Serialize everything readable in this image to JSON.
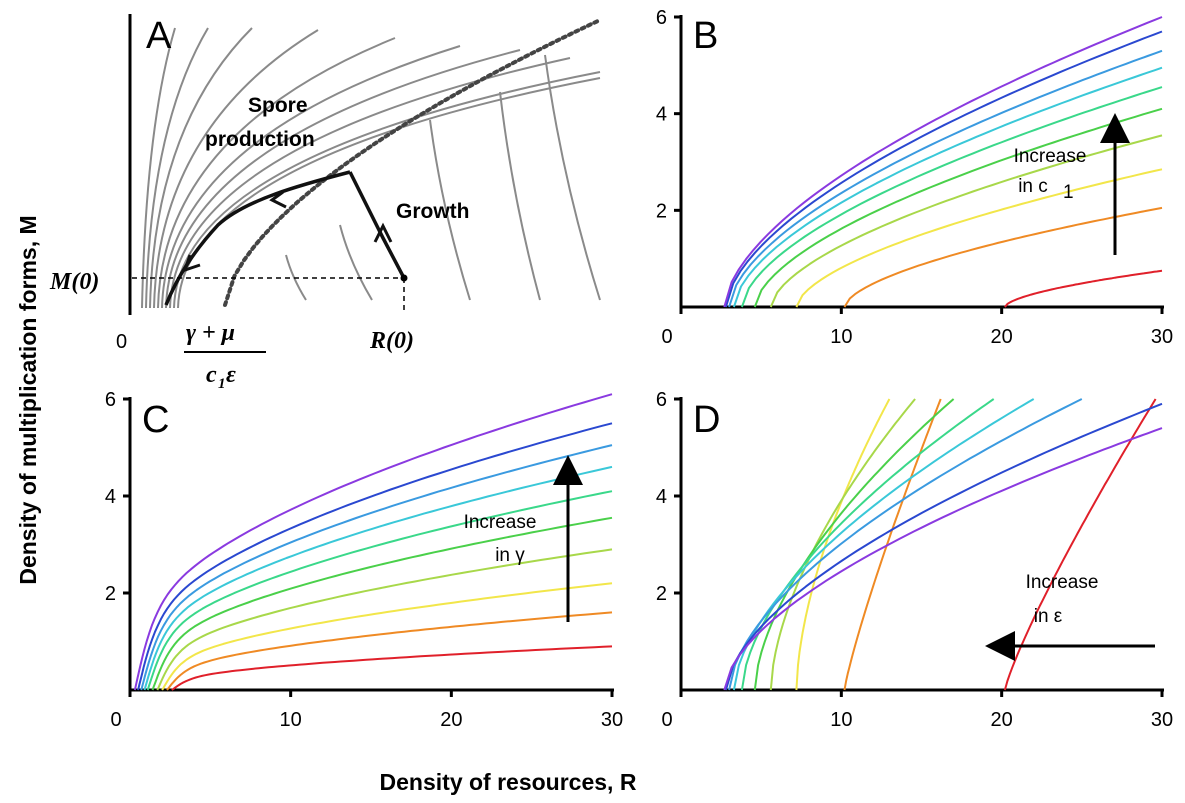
{
  "axis_labels": {
    "y": "Density of multiplication forms, M",
    "x": "Density of resources, R"
  },
  "panel_a": {
    "label": "A",
    "region1": "Spore",
    "region1b": "production",
    "region2": "Growth",
    "origin": "0",
    "m0": "M(0)",
    "r0": "R(0)",
    "frac_num": "γ + μ",
    "frac_den_c": "c",
    "frac_den_sub": "1",
    "frac_den_eps": "ε"
  },
  "chart_data": [
    {
      "panel": "B",
      "type": "line",
      "xlim": [
        0,
        30
      ],
      "ylim": [
        0,
        6
      ],
      "xticks": [
        0,
        10,
        20,
        30
      ],
      "yticks": [
        2,
        4,
        6
      ],
      "annotation": [
        "Increase",
        "in c",
        "1"
      ],
      "arrow": "up",
      "colors": [
        "#e0202a",
        "#ef8a24",
        "#f2e64a",
        "#a8d84a",
        "#4ad04a",
        "#3ad88a",
        "#3ac8d8",
        "#3a9ae0",
        "#2a48d0",
        "#8a3ae0"
      ],
      "series_values": {
        "x0": [
          20.2,
          10.2,
          7.2,
          5.6,
          4.6,
          3.8,
          3.3,
          3.0,
          2.8,
          2.7
        ],
        "y_at_30": [
          0.75,
          2.05,
          2.85,
          3.55,
          4.1,
          4.55,
          4.95,
          5.3,
          5.7,
          6.0
        ]
      }
    },
    {
      "panel": "C",
      "type": "line",
      "xlim": [
        0,
        30
      ],
      "ylim": [
        0,
        6
      ],
      "xticks": [
        0,
        10,
        20,
        30
      ],
      "yticks": [
        2,
        4,
        6
      ],
      "annotation": [
        "Increase",
        "in γ"
      ],
      "arrow": "up",
      "colors": [
        "#e0202a",
        "#ef8a24",
        "#f2e64a",
        "#a8d84a",
        "#4ad04a",
        "#3ad88a",
        "#3ac8d8",
        "#3a9ae0",
        "#2a48d0",
        "#8a3ae0"
      ],
      "series_values": {
        "y_at_30": [
          0.9,
          1.6,
          2.2,
          2.9,
          3.55,
          4.1,
          4.6,
          5.05,
          5.5,
          6.1
        ]
      }
    },
    {
      "panel": "D",
      "type": "line",
      "xlim": [
        0,
        30
      ],
      "ylim": [
        0,
        6
      ],
      "xticks": [
        0,
        10,
        20,
        30
      ],
      "yticks": [
        2,
        4,
        6
      ],
      "annotation": [
        "Increase",
        "in ε"
      ],
      "arrow": "left",
      "colors": [
        "#e0202a",
        "#ef8a24",
        "#f2e64a",
        "#a8d84a",
        "#4ad04a",
        "#3ad88a",
        "#3ac8d8",
        "#3a9ae0",
        "#2a48d0",
        "#8a3ae0"
      ],
      "series_values": {
        "x0": [
          20.2,
          10.2,
          7.2,
          5.6,
          4.6,
          3.8,
          3.3,
          3.0,
          2.8,
          2.7
        ],
        "x_at_6": [
          29.6,
          16.2,
          13.0,
          14.6,
          17.0,
          19.5,
          22.0,
          25.0,
          30.0,
          30.0
        ],
        "y_at_30": [
          6.0,
          6.0,
          6.0,
          6.0,
          6.0,
          6.0,
          6.0,
          6.0,
          5.9,
          5.4
        ]
      }
    }
  ]
}
